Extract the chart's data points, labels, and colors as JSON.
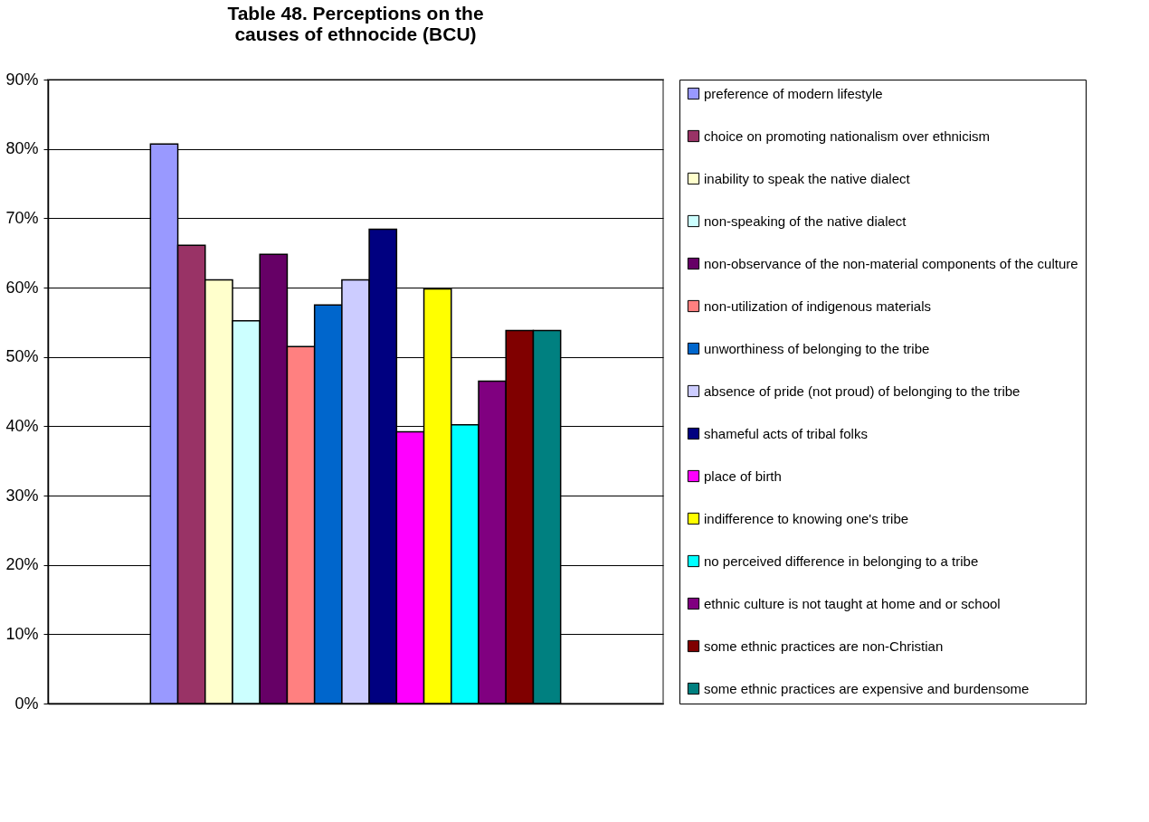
{
  "chart_data": {
    "type": "bar",
    "title": "Table 48. Perceptions on the causes of ethnocide (BCU)",
    "categories": [
      null
    ],
    "series": [
      {
        "name": "preference of modern lifestyle",
        "color": "#9999ff",
        "values": [
          80.7
        ]
      },
      {
        "name": "choice on promoting nationalism over ethnicism",
        "color": "#993366",
        "values": [
          66.1
        ]
      },
      {
        "name": "inability to speak the native dialect",
        "color": "#ffffcc",
        "values": [
          61.1
        ]
      },
      {
        "name": "non-speaking of the native dialect",
        "color": "#ccffff",
        "values": [
          55.2
        ]
      },
      {
        "name": "non-observance of the non-material components of the culture",
        "color": "#660066",
        "values": [
          64.8
        ]
      },
      {
        "name": "non-utilization of indigenous materials",
        "color": "#ff8080",
        "values": [
          51.5
        ]
      },
      {
        "name": "unworthiness of belonging to the tribe",
        "color": "#0066cc",
        "values": [
          57.5
        ]
      },
      {
        "name": "absence of pride (not proud) of belonging to the tribe",
        "color": "#ccccff",
        "values": [
          61.1
        ]
      },
      {
        "name": "shameful acts of tribal folks",
        "color": "#000080",
        "values": [
          68.4
        ]
      },
      {
        "name": "place of birth",
        "color": "#ff00ff",
        "values": [
          39.2
        ]
      },
      {
        "name": "indifference to knowing one's tribe",
        "color": "#ffff00",
        "values": [
          59.8
        ]
      },
      {
        "name": "no perceived difference in belonging to a tribe",
        "color": "#00ffff",
        "values": [
          40.2
        ]
      },
      {
        "name": "ethnic culture is not taught at home and or school",
        "color": "#800080",
        "values": [
          46.5
        ]
      },
      {
        "name": "some ethnic practices are non-Christian",
        "color": "#800000",
        "values": [
          53.8
        ]
      },
      {
        "name": "some ethnic practices are expensive and burdensome",
        "color": "#008080",
        "values": [
          53.8
        ]
      }
    ],
    "ylim": [
      0,
      90
    ],
    "yticks": [
      {
        "value": 0,
        "label": "0%"
      },
      {
        "value": 10,
        "label": "10%"
      },
      {
        "value": 20,
        "label": "20%"
      },
      {
        "value": 30,
        "label": "30%"
      },
      {
        "value": 40,
        "label": "40%"
      },
      {
        "value": 50,
        "label": "50%"
      },
      {
        "value": 60,
        "label": "60%"
      },
      {
        "value": 70,
        "label": "70%"
      },
      {
        "value": 80,
        "label": "80%"
      },
      {
        "value": 90,
        "label": "90%"
      }
    ],
    "grid": "y",
    "legend": "right"
  }
}
